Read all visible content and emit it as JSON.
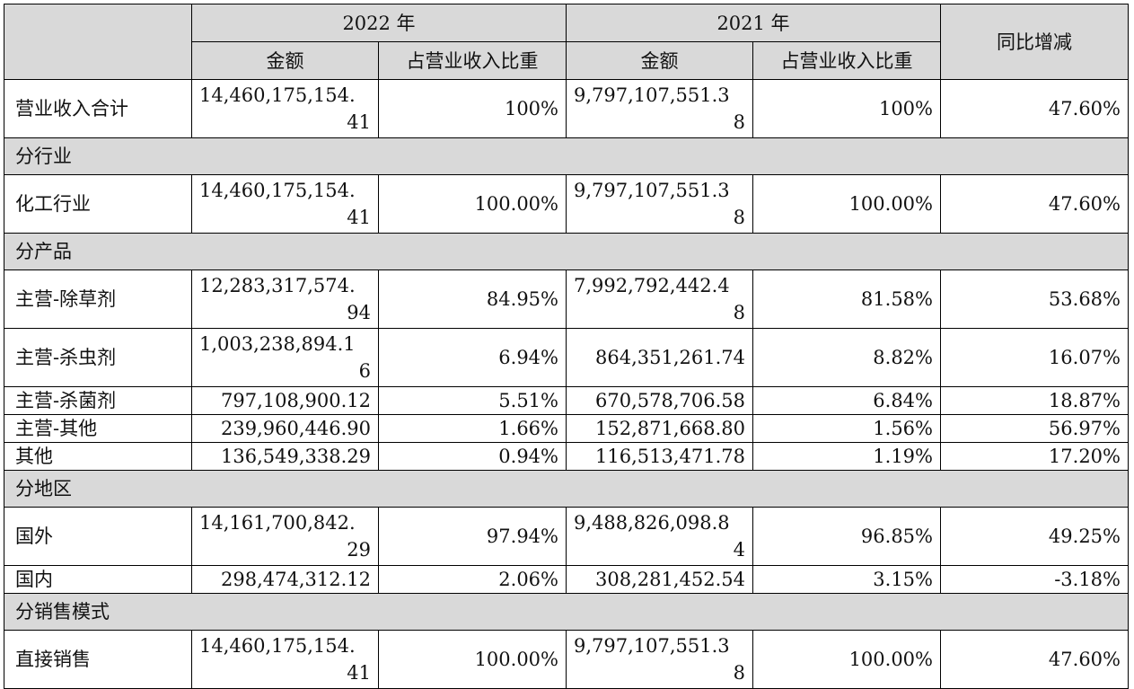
{
  "header": {
    "year_2022": "2022 年",
    "year_2021": "2021 年",
    "yoy": "同比增减",
    "amount": "金额",
    "ratio": "占营业收入比重"
  },
  "total": {
    "label": "营业收入合计",
    "amt_2022_a": "14,460,175,154.",
    "amt_2022_b": "41",
    "ratio_2022": "100%",
    "amt_2021_a": "9,797,107,551.3",
    "amt_2021_b": "8",
    "ratio_2021": "100%",
    "yoy": "47.60%"
  },
  "sections": {
    "industry": "分行业",
    "product": "分产品",
    "region": "分地区",
    "sales_mode": "分销售模式"
  },
  "rows": {
    "chem": {
      "label": "化工行业",
      "amt_2022_a": "14,460,175,154.",
      "amt_2022_b": "41",
      "ratio_2022": "100.00%",
      "amt_2021_a": "9,797,107,551.3",
      "amt_2021_b": "8",
      "ratio_2021": "100.00%",
      "yoy": "47.60%"
    },
    "herb": {
      "label": "主营-除草剂",
      "amt_2022_a": "12,283,317,574.",
      "amt_2022_b": "94",
      "ratio_2022": "84.95%",
      "amt_2021_a": "7,992,792,442.4",
      "amt_2021_b": "8",
      "ratio_2021": "81.58%",
      "yoy": "53.68%"
    },
    "insect": {
      "label": "主营-杀虫剂",
      "amt_2022_a": "1,003,238,894.1",
      "amt_2022_b": "6",
      "ratio_2022": "6.94%",
      "amt_2021": "864,351,261.74",
      "ratio_2021": "8.82%",
      "yoy": "16.07%"
    },
    "fung": {
      "label": "主营-杀菌剂",
      "amt_2022": "797,108,900.12",
      "ratio_2022": "5.51%",
      "amt_2021": "670,578,706.58",
      "ratio_2021": "6.84%",
      "yoy": "18.87%"
    },
    "other_main": {
      "label": "主营-其他",
      "amt_2022": "239,960,446.90",
      "ratio_2022": "1.66%",
      "amt_2021": "152,871,668.80",
      "ratio_2021": "1.56%",
      "yoy": "56.97%"
    },
    "other": {
      "label": "其他",
      "amt_2022": "136,549,338.29",
      "ratio_2022": "0.94%",
      "amt_2021": "116,513,471.78",
      "ratio_2021": "1.19%",
      "yoy": "17.20%"
    },
    "abroad": {
      "label": "国外",
      "amt_2022_a": "14,161,700,842.",
      "amt_2022_b": "29",
      "ratio_2022": "97.94%",
      "amt_2021_a": "9,488,826,098.8",
      "amt_2021_b": "4",
      "ratio_2021": "96.85%",
      "yoy": "49.25%"
    },
    "domestic": {
      "label": "国内",
      "amt_2022": "298,474,312.12",
      "ratio_2022": "2.06%",
      "amt_2021": "308,281,452.54",
      "ratio_2021": "3.15%",
      "yoy": "-3.18%"
    },
    "direct": {
      "label": "直接销售",
      "amt_2022_a": "14,460,175,154.",
      "amt_2022_b": "41",
      "ratio_2022": "100.00%",
      "amt_2021_a": "9,797,107,551.3",
      "amt_2021_b": "8",
      "ratio_2021": "100.00%",
      "yoy": "47.60%"
    }
  }
}
